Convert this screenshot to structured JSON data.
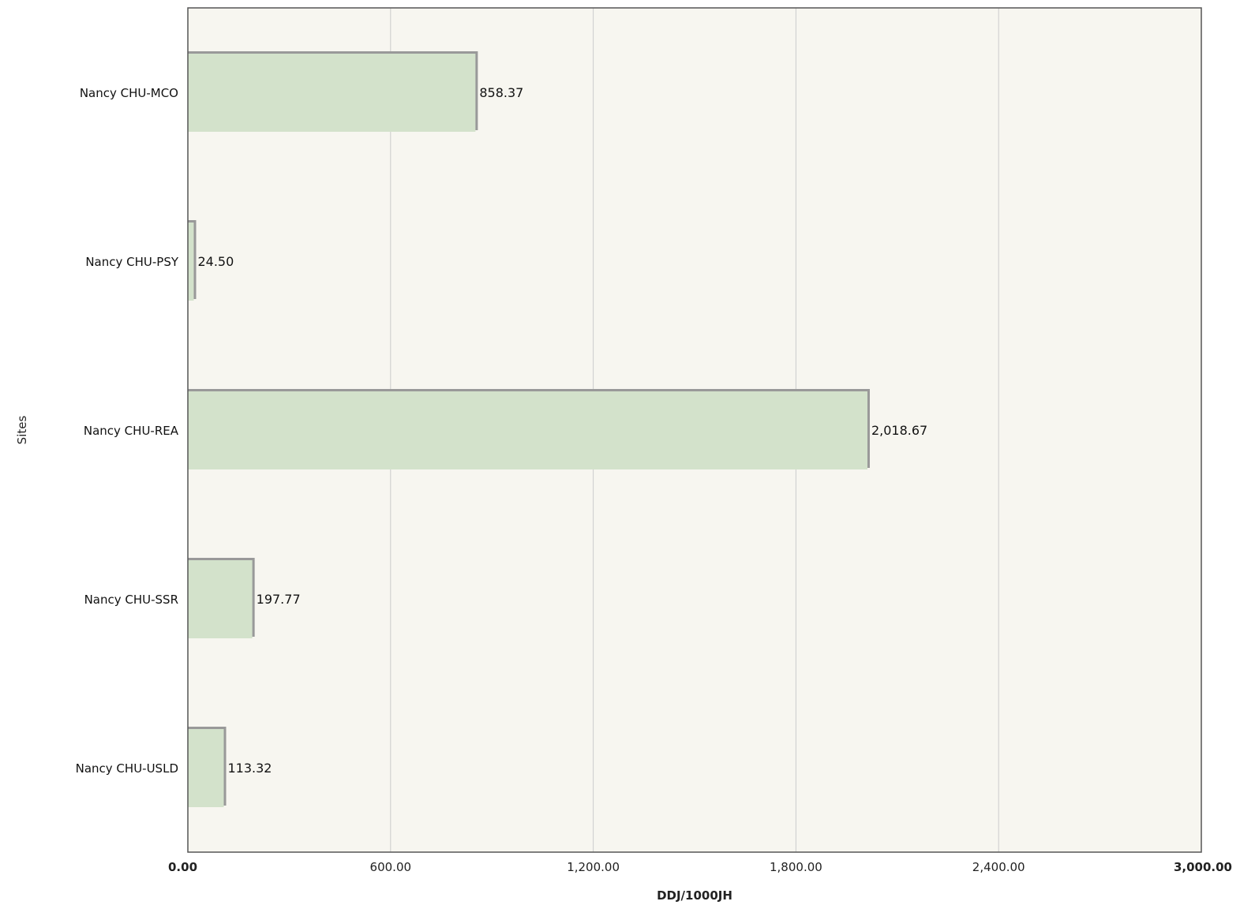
{
  "chart_data": {
    "type": "bar",
    "orientation": "horizontal",
    "categories": [
      "Nancy CHU-MCO",
      "Nancy CHU-PSY",
      "Nancy CHU-REA",
      "Nancy CHU-SSR",
      "Nancy CHU-USLD"
    ],
    "values": [
      858.37,
      24.5,
      2018.67,
      197.77,
      113.32
    ],
    "data_labels": [
      "858.37",
      "24.50",
      "2,018.67",
      "197.77",
      "113.32"
    ],
    "xlabel": "DDJ/1000JH",
    "ylabel": "Sites",
    "xlim": [
      0,
      3000
    ],
    "x_ticks": [
      0,
      600,
      1200,
      1800,
      2400,
      3000
    ],
    "x_tick_labels": [
      "0.00",
      "600.00",
      "1,200.00",
      "1,800.00",
      "2,400.00",
      "3,000.00"
    ],
    "grid": "vertical",
    "legend": "none",
    "colors": {
      "bar_fill": "#d3e2cb",
      "bar_edge": "#999999",
      "plot_background": "#f7f6f0",
      "gridline": "#cccccc",
      "axis": "#555555"
    }
  }
}
